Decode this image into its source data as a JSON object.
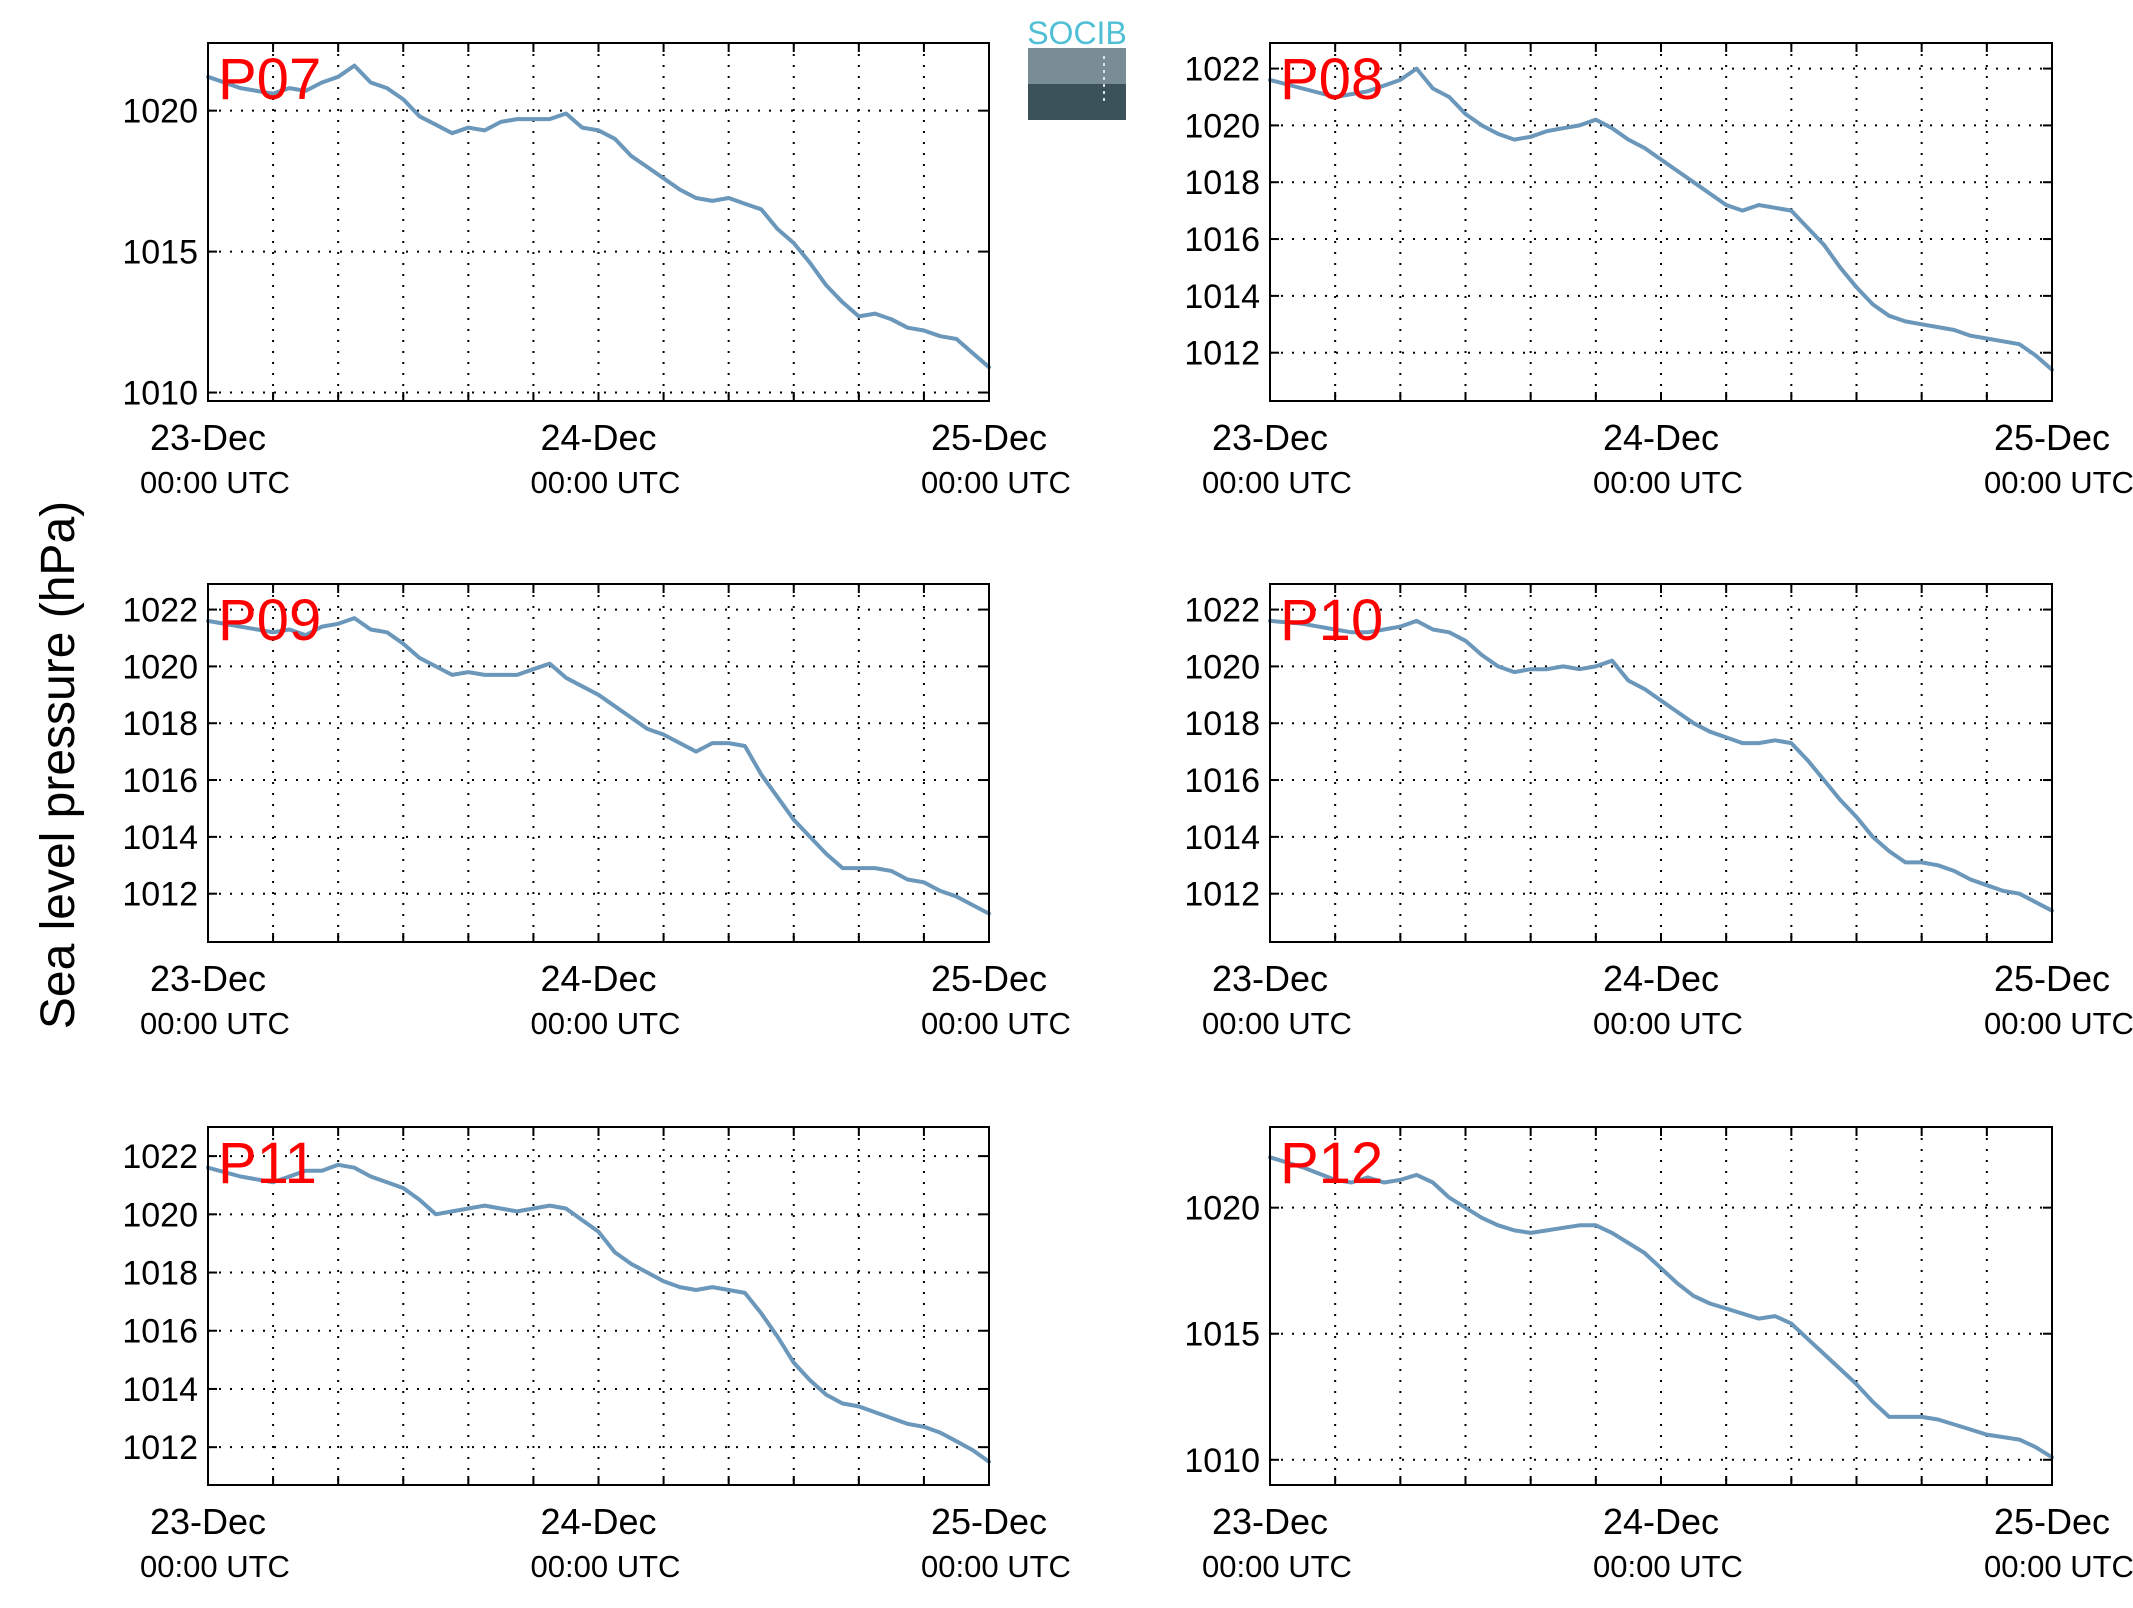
{
  "figure": {
    "ylabel": "Sea level pressure (hPa)",
    "logo_text": "SOCIB",
    "line_color": "#6a97ba",
    "label_color": "#ff0000",
    "x_ticks": [
      {
        "x": 0,
        "date": "23-Dec",
        "time": "00:00 UTC"
      },
      {
        "x": 24,
        "date": "24-Dec",
        "time": "00:00 UTC"
      },
      {
        "x": 48,
        "date": "25-Dec",
        "time": "00:00 UTC"
      }
    ]
  },
  "chart_data": [
    {
      "type": "line",
      "title": "P07",
      "xlabel": "",
      "ylabel": "",
      "x_unit": "hours since 23-Dec 00:00 UTC",
      "xlim": [
        0,
        48
      ],
      "ylim": [
        1009.7,
        1022.4
      ],
      "yticks": [
        1010,
        1015,
        1020
      ],
      "grid": true,
      "series": [
        {
          "x": [
            0,
            2,
            4,
            5,
            6,
            7,
            8,
            9,
            10,
            11,
            12,
            13,
            14,
            15,
            16,
            17,
            18,
            19,
            20,
            21,
            22,
            23,
            24,
            25,
            26,
            27,
            28,
            29,
            30,
            31,
            32,
            33,
            34,
            35,
            36,
            37,
            38,
            39,
            40,
            41,
            42,
            43,
            44,
            45,
            46,
            47,
            48
          ],
          "y": [
            1021.2,
            1020.8,
            1020.6,
            1020.8,
            1020.7,
            1021.0,
            1021.2,
            1021.6,
            1021.0,
            1020.8,
            1020.4,
            1019.8,
            1019.5,
            1019.2,
            1019.4,
            1019.3,
            1019.6,
            1019.7,
            1019.7,
            1019.7,
            1019.9,
            1019.4,
            1019.3,
            1019.0,
            1018.4,
            1018.0,
            1017.6,
            1017.2,
            1016.9,
            1016.8,
            1016.9,
            1016.7,
            1016.5,
            1015.8,
            1015.3,
            1014.6,
            1013.8,
            1013.2,
            1012.7,
            1012.8,
            1012.6,
            1012.3,
            1012.2,
            1012.0,
            1011.9,
            1011.4,
            1010.9
          ]
        }
      ]
    },
    {
      "type": "line",
      "title": "P08",
      "xlabel": "",
      "ylabel": "",
      "x_unit": "hours since 23-Dec 00:00 UTC",
      "xlim": [
        0,
        48
      ],
      "ylim": [
        1010.3,
        1022.9
      ],
      "yticks": [
        1012,
        1014,
        1016,
        1018,
        1020,
        1022
      ],
      "grid": true,
      "series": [
        {
          "x": [
            0,
            2,
            4,
            5,
            6,
            7,
            8,
            9,
            10,
            11,
            12,
            13,
            14,
            15,
            16,
            17,
            18,
            19,
            20,
            21,
            22,
            23,
            24,
            25,
            26,
            27,
            28,
            29,
            30,
            31,
            32,
            33,
            34,
            35,
            36,
            37,
            38,
            39,
            40,
            41,
            42,
            43,
            44,
            45,
            46,
            47,
            48
          ],
          "y": [
            1021.6,
            1021.3,
            1021.0,
            1021.1,
            1021.2,
            1021.4,
            1021.6,
            1022.0,
            1021.3,
            1021.0,
            1020.4,
            1020.0,
            1019.7,
            1019.5,
            1019.6,
            1019.8,
            1019.9,
            1020.0,
            1020.2,
            1019.9,
            1019.5,
            1019.2,
            1018.8,
            1018.4,
            1018.0,
            1017.6,
            1017.2,
            1017.0,
            1017.2,
            1017.1,
            1017.0,
            1016.4,
            1015.8,
            1015.0,
            1014.3,
            1013.7,
            1013.3,
            1013.1,
            1013.0,
            1012.9,
            1012.8,
            1012.6,
            1012.5,
            1012.4,
            1012.3,
            1011.9,
            1011.4
          ]
        }
      ]
    },
    {
      "type": "line",
      "title": "P09",
      "xlabel": "",
      "ylabel": "",
      "x_unit": "hours since 23-Dec 00:00 UTC",
      "xlim": [
        0,
        48
      ],
      "ylim": [
        1010.3,
        1022.9
      ],
      "yticks": [
        1012,
        1014,
        1016,
        1018,
        1020,
        1022
      ],
      "grid": true,
      "series": [
        {
          "x": [
            0,
            2,
            4,
            5,
            6,
            7,
            8,
            9,
            10,
            11,
            12,
            13,
            14,
            15,
            16,
            17,
            18,
            19,
            20,
            21,
            22,
            23,
            24,
            25,
            26,
            27,
            28,
            29,
            30,
            31,
            32,
            33,
            34,
            35,
            36,
            37,
            38,
            39,
            40,
            41,
            42,
            43,
            44,
            45,
            46,
            47,
            48
          ],
          "y": [
            1021.6,
            1021.4,
            1021.2,
            1021.3,
            1021.1,
            1021.4,
            1021.5,
            1021.7,
            1021.3,
            1021.2,
            1020.8,
            1020.3,
            1020.0,
            1019.7,
            1019.8,
            1019.7,
            1019.7,
            1019.7,
            1019.9,
            1020.1,
            1019.6,
            1019.3,
            1019.0,
            1018.6,
            1018.2,
            1017.8,
            1017.6,
            1017.3,
            1017.0,
            1017.3,
            1017.3,
            1017.2,
            1016.2,
            1015.4,
            1014.6,
            1014.0,
            1013.4,
            1012.9,
            1012.9,
            1012.9,
            1012.8,
            1012.5,
            1012.4,
            1012.1,
            1011.9,
            1011.6,
            1011.3
          ]
        }
      ]
    },
    {
      "type": "line",
      "title": "P10",
      "xlabel": "",
      "ylabel": "",
      "x_unit": "hours since 23-Dec 00:00 UTC",
      "xlim": [
        0,
        48
      ],
      "ylim": [
        1010.3,
        1022.9
      ],
      "yticks": [
        1012,
        1014,
        1016,
        1018,
        1020,
        1022
      ],
      "grid": true,
      "series": [
        {
          "x": [
            0,
            2,
            4,
            5,
            6,
            7,
            8,
            9,
            10,
            11,
            12,
            13,
            14,
            15,
            16,
            17,
            18,
            19,
            20,
            21,
            22,
            23,
            24,
            25,
            26,
            27,
            28,
            29,
            30,
            31,
            32,
            33,
            34,
            35,
            36,
            37,
            38,
            39,
            40,
            41,
            42,
            43,
            44,
            45,
            46,
            47,
            48
          ],
          "y": [
            1021.6,
            1021.5,
            1021.3,
            1021.2,
            1021.2,
            1021.3,
            1021.4,
            1021.6,
            1021.3,
            1021.2,
            1020.9,
            1020.4,
            1020.0,
            1019.8,
            1019.9,
            1019.9,
            1020.0,
            1019.9,
            1020.0,
            1020.2,
            1019.5,
            1019.2,
            1018.8,
            1018.4,
            1018.0,
            1017.7,
            1017.5,
            1017.3,
            1017.3,
            1017.4,
            1017.3,
            1016.7,
            1016.0,
            1015.3,
            1014.7,
            1014.0,
            1013.5,
            1013.1,
            1013.1,
            1013.0,
            1012.8,
            1012.5,
            1012.3,
            1012.1,
            1012.0,
            1011.7,
            1011.4
          ]
        }
      ]
    },
    {
      "type": "line",
      "title": "P11",
      "xlabel": "",
      "ylabel": "",
      "x_unit": "hours since 23-Dec 00:00 UTC",
      "xlim": [
        0,
        48
      ],
      "ylim": [
        1010.7,
        1023.0
      ],
      "yticks": [
        1012,
        1014,
        1016,
        1018,
        1020,
        1022
      ],
      "grid": true,
      "series": [
        {
          "x": [
            0,
            2,
            4,
            5,
            6,
            7,
            8,
            9,
            10,
            11,
            12,
            13,
            14,
            15,
            16,
            17,
            18,
            19,
            20,
            21,
            22,
            23,
            24,
            25,
            26,
            27,
            28,
            29,
            30,
            31,
            32,
            33,
            34,
            35,
            36,
            37,
            38,
            39,
            40,
            41,
            42,
            43,
            44,
            45,
            46,
            47,
            48
          ],
          "y": [
            1021.6,
            1021.3,
            1021.1,
            1021.3,
            1021.5,
            1021.5,
            1021.7,
            1021.6,
            1021.3,
            1021.1,
            1020.9,
            1020.5,
            1020.0,
            1020.1,
            1020.2,
            1020.3,
            1020.2,
            1020.1,
            1020.2,
            1020.3,
            1020.2,
            1019.8,
            1019.4,
            1018.7,
            1018.3,
            1018.0,
            1017.7,
            1017.5,
            1017.4,
            1017.5,
            1017.4,
            1017.3,
            1016.6,
            1015.8,
            1014.9,
            1014.3,
            1013.8,
            1013.5,
            1013.4,
            1013.2,
            1013.0,
            1012.8,
            1012.7,
            1012.5,
            1012.2,
            1011.9,
            1011.5
          ]
        }
      ]
    },
    {
      "type": "line",
      "title": "P12",
      "xlabel": "",
      "ylabel": "",
      "x_unit": "hours since 23-Dec 00:00 UTC",
      "xlim": [
        0,
        48
      ],
      "ylim": [
        1009.0,
        1023.2
      ],
      "yticks": [
        1010,
        1015,
        1020
      ],
      "grid": true,
      "series": [
        {
          "x": [
            0,
            2,
            4,
            5,
            6,
            7,
            8,
            9,
            10,
            11,
            12,
            13,
            14,
            15,
            16,
            17,
            18,
            19,
            20,
            21,
            22,
            23,
            24,
            25,
            26,
            27,
            28,
            29,
            30,
            31,
            32,
            33,
            34,
            35,
            36,
            37,
            38,
            39,
            40,
            41,
            42,
            43,
            44,
            45,
            46,
            47,
            48
          ],
          "y": [
            1022.0,
            1021.6,
            1021.1,
            1021.0,
            1021.2,
            1021.0,
            1021.1,
            1021.3,
            1021.0,
            1020.4,
            1020.0,
            1019.6,
            1019.3,
            1019.1,
            1019.0,
            1019.1,
            1019.2,
            1019.3,
            1019.3,
            1019.0,
            1018.6,
            1018.2,
            1017.6,
            1017.0,
            1016.5,
            1016.2,
            1016.0,
            1015.8,
            1015.6,
            1015.7,
            1015.4,
            1014.8,
            1014.2,
            1013.6,
            1013.0,
            1012.3,
            1011.7,
            1011.7,
            1011.7,
            1011.6,
            1011.4,
            1011.2,
            1011.0,
            1010.9,
            1010.8,
            1010.5,
            1010.1
          ]
        }
      ]
    }
  ]
}
